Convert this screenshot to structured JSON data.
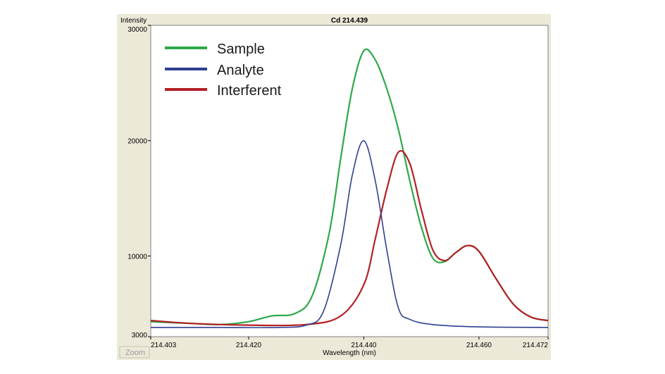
{
  "window": {
    "zoom_label": "Zoom"
  },
  "chart_data": {
    "type": "line",
    "title": "Cd 214.439",
    "xlabel": "Wavelength (nm)",
    "ylabel": "Intensity",
    "xlim": [
      214.403,
      214.472
    ],
    "ylim": [
      3000,
      30000
    ],
    "x_ticks": [
      214.403,
      214.42,
      214.44,
      214.46,
      214.472
    ],
    "x_tick_labels": [
      "214.403",
      "214.420",
      "214.440",
      "214.460",
      "214.472"
    ],
    "y_ticks": [
      3000,
      10000,
      20000,
      30000
    ],
    "y_tick_labels": [
      "3000",
      "10000",
      "20000",
      "30000"
    ],
    "grid": false,
    "legend_position": "top-left",
    "series": [
      {
        "name": "Sample",
        "color": "#2ea84a",
        "x": [
          214.403,
          214.41,
          214.415,
          214.42,
          214.424,
          214.428,
          214.431,
          214.434,
          214.436,
          214.438,
          214.44,
          214.442,
          214.444,
          214.446,
          214.448,
          214.45,
          214.452,
          214.454,
          214.456,
          214.458,
          214.46,
          214.463,
          214.466,
          214.469,
          214.472
        ],
        "y": [
          4300,
          4150,
          4050,
          4300,
          4800,
          5000,
          6500,
          12000,
          18500,
          24500,
          27800,
          27000,
          24500,
          21000,
          16500,
          12500,
          9800,
          9500,
          10300,
          10900,
          10400,
          8000,
          5800,
          4700,
          4400
        ]
      },
      {
        "name": "Analyte",
        "color": "#2f3f8f",
        "x": [
          214.403,
          214.415,
          214.425,
          214.43,
          214.433,
          214.436,
          214.438,
          214.44,
          214.442,
          214.444,
          214.446,
          214.448,
          214.452,
          214.46,
          214.472
        ],
        "y": [
          3800,
          3800,
          3800,
          4000,
          5200,
          11000,
          17000,
          20000,
          16500,
          10500,
          5500,
          4500,
          4050,
          3850,
          3800
        ]
      },
      {
        "name": "Interferent",
        "color": "#b32025",
        "x": [
          214.403,
          214.41,
          214.42,
          214.43,
          214.436,
          214.44,
          214.442,
          214.444,
          214.446,
          214.448,
          214.45,
          214.452,
          214.454,
          214.456,
          214.458,
          214.46,
          214.463,
          214.466,
          214.469,
          214.472
        ],
        "y": [
          4400,
          4150,
          4000,
          4050,
          4800,
          7500,
          11500,
          15800,
          19000,
          18000,
          14000,
          10500,
          9600,
          10300,
          10900,
          10400,
          8000,
          5800,
          4700,
          4400
        ]
      }
    ]
  }
}
